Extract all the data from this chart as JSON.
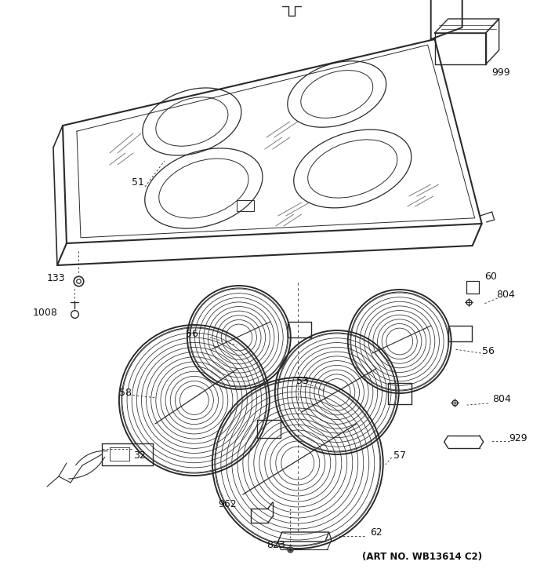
{
  "art_no": "(ART NO. WB13614 C2)",
  "background_color": "#ffffff",
  "line_color": "#2a2a2a",
  "figsize": [
    6.8,
    7.25
  ],
  "dpi": 100
}
